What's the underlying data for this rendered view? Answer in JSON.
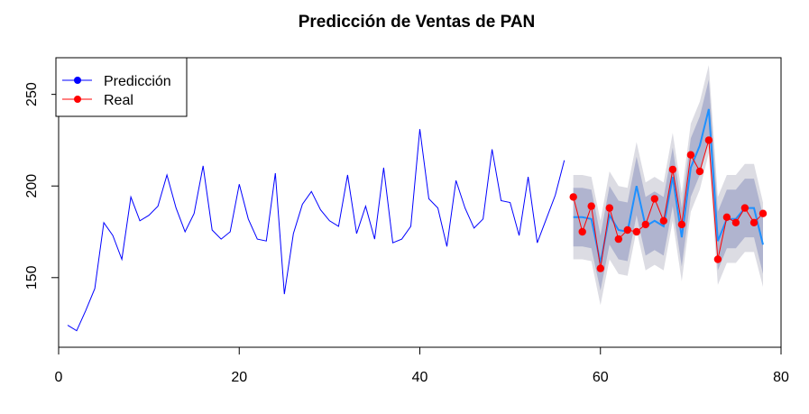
{
  "chart_data": {
    "type": "line",
    "title": "Predicción de Ventas de PAN",
    "xlabel": "",
    "ylabel": "",
    "xlim": [
      0,
      80
    ],
    "ylim": [
      112,
      270
    ],
    "xticks": [
      0,
      20,
      40,
      60,
      80
    ],
    "yticks": [
      150,
      200,
      250
    ],
    "grid": false,
    "legend_position": "top-left",
    "legend": [
      {
        "label": "Predicción",
        "color": "#0000ff"
      },
      {
        "label": "Real",
        "color": "#ff0000"
      }
    ],
    "series": [
      {
        "kind": "history",
        "color": "#0000ff",
        "x": [
          1,
          2,
          3,
          4,
          5,
          6,
          7,
          8,
          9,
          10,
          11,
          12,
          13,
          14,
          15,
          16,
          17,
          18,
          19,
          20,
          21,
          22,
          23,
          24,
          25,
          26,
          27,
          28,
          29,
          30,
          31,
          32,
          33,
          34,
          35,
          36,
          37,
          38,
          39,
          40,
          41,
          42,
          43,
          44,
          45,
          46,
          47,
          48,
          49,
          50,
          51,
          52,
          53,
          54,
          55,
          56
        ],
        "y": [
          124,
          121,
          132,
          144,
          180,
          173,
          160,
          194,
          181,
          184,
          189,
          206,
          188,
          175,
          185,
          211,
          176,
          171,
          175,
          201,
          182,
          171,
          170,
          207,
          141,
          174,
          190,
          197,
          187,
          181,
          178,
          206,
          174,
          189,
          171,
          210,
          169,
          171,
          178,
          231,
          193,
          188,
          167,
          203,
          188,
          177,
          182,
          220,
          192,
          191,
          173,
          205,
          169,
          182,
          195,
          214
        ]
      },
      {
        "kind": "forecast",
        "color": "#1e90ff",
        "x": [
          57,
          58,
          59,
          60,
          61,
          62,
          63,
          64,
          65,
          66,
          67,
          68,
          69,
          70,
          71,
          72,
          73,
          74,
          75,
          76,
          77,
          78
        ],
        "y": [
          183,
          183,
          182,
          158,
          184,
          176,
          175,
          200,
          178,
          181,
          178,
          205,
          172,
          210,
          222,
          242,
          170,
          182,
          182,
          188,
          188,
          168
        ]
      },
      {
        "kind": "actual",
        "name": "Real",
        "color": "#ff0000",
        "x": [
          57,
          58,
          59,
          60,
          61,
          62,
          63,
          64,
          65,
          66,
          67,
          68,
          69,
          70,
          71,
          72,
          73,
          74,
          75,
          76,
          77,
          78
        ],
        "y": [
          194,
          175,
          189,
          155,
          188,
          171,
          176,
          175,
          179,
          193,
          181,
          209,
          179,
          217,
          208,
          225,
          160,
          183,
          180,
          188,
          180,
          185
        ]
      }
    ],
    "intervals": {
      "x": [
        57,
        58,
        59,
        60,
        61,
        62,
        63,
        64,
        65,
        66,
        67,
        68,
        69,
        70,
        71,
        72,
        73,
        74,
        75,
        76,
        77,
        78
      ],
      "lower80": [
        167,
        167,
        166,
        143,
        168,
        160,
        159,
        184,
        162,
        165,
        162,
        189,
        156,
        194,
        206,
        226,
        154,
        166,
        166,
        172,
        172,
        152
      ],
      "upper80": [
        199,
        199,
        198,
        173,
        200,
        192,
        191,
        216,
        194,
        197,
        194,
        221,
        188,
        226,
        238,
        258,
        186,
        198,
        198,
        204,
        204,
        184
      ],
      "lower95": [
        160,
        160,
        159,
        135,
        160,
        152,
        151,
        176,
        154,
        157,
        154,
        181,
        148,
        186,
        198,
        218,
        146,
        158,
        158,
        164,
        164,
        145
      ],
      "upper95": [
        206,
        206,
        205,
        181,
        208,
        200,
        199,
        224,
        202,
        205,
        202,
        229,
        196,
        234,
        246,
        266,
        194,
        206,
        206,
        212,
        212,
        191
      ],
      "colors": {
        "inner": "#b0b4cf",
        "outer": "#dcdce3"
      }
    }
  }
}
